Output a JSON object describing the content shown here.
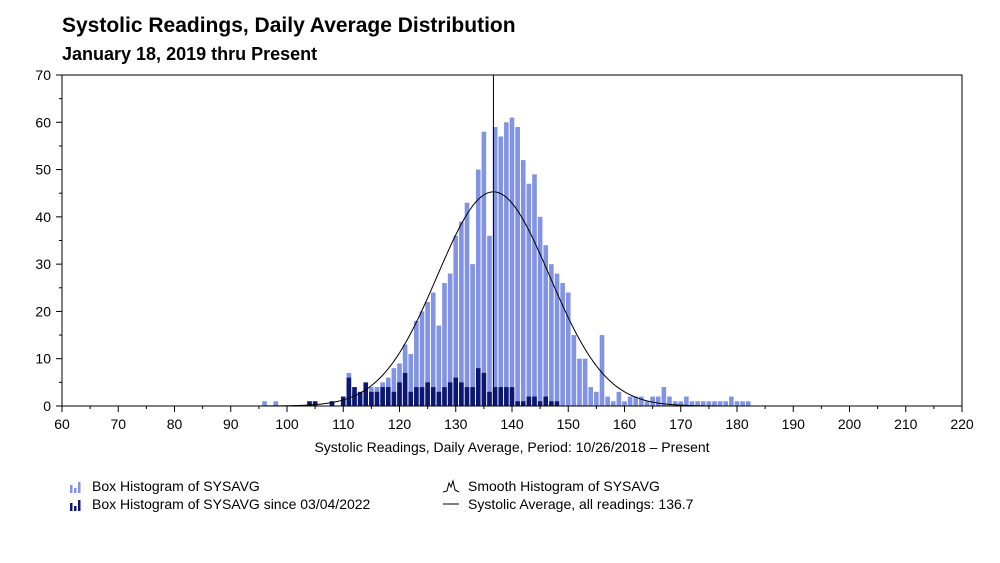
{
  "chart_data": {
    "type": "bar",
    "title": "Systolic Readings, Daily Average Distribution",
    "subtitle": "January 18, 2019 thru Present",
    "xlabel": "Systolic Readings, Daily Average, Period: 10/26/2018 – Present",
    "ylabel": "",
    "xlim": [
      60,
      220
    ],
    "ylim": [
      0,
      70
    ],
    "x_ticks": [
      60,
      70,
      80,
      90,
      100,
      110,
      120,
      130,
      140,
      150,
      160,
      170,
      180,
      190,
      200,
      210,
      220
    ],
    "y_ticks": [
      0,
      10,
      20,
      30,
      40,
      50,
      60,
      70
    ],
    "mean": 136.7,
    "curve_peak": 45.3,
    "curve_sd": 10,
    "series": [
      {
        "name": "Box Histogram of SYSAVG",
        "color": "#8193e2",
        "x": [
          96,
          98,
          104,
          105,
          108,
          110,
          111,
          112,
          113,
          114,
          115,
          116,
          117,
          118,
          119,
          120,
          121,
          122,
          123,
          124,
          125,
          126,
          127,
          128,
          129,
          130,
          131,
          132,
          133,
          134,
          135,
          136,
          137,
          138,
          139,
          140,
          141,
          142,
          143,
          144,
          145,
          146,
          147,
          148,
          149,
          150,
          151,
          152,
          153,
          154,
          155,
          156,
          157,
          158,
          159,
          160,
          161,
          162,
          163,
          164,
          165,
          166,
          167,
          168,
          169,
          170,
          171,
          172,
          173,
          174,
          175,
          176,
          177,
          178,
          179,
          180,
          181,
          182
        ],
        "values": [
          1,
          1,
          1,
          1,
          1,
          1,
          7,
          3,
          2,
          2,
          4,
          4,
          5,
          6,
          8,
          9,
          13,
          11,
          18,
          20,
          22,
          24,
          17,
          26,
          28,
          36,
          39,
          43,
          30,
          50,
          58,
          36,
          59,
          57,
          60,
          61,
          59,
          52,
          47,
          49,
          40,
          34,
          30,
          28,
          26,
          24,
          15,
          10,
          10,
          4,
          3,
          15,
          2,
          1,
          3,
          1,
          2,
          2,
          2,
          1,
          2,
          2,
          4,
          2,
          1,
          1,
          2,
          1,
          1,
          1,
          1,
          1,
          1,
          1,
          2,
          1,
          1,
          1
        ]
      },
      {
        "name": "Box Histogram of SYSAVG since 03/04/2022",
        "color": "#0c1771",
        "x": [
          104,
          105,
          108,
          110,
          111,
          112,
          113,
          114,
          115,
          116,
          117,
          118,
          119,
          120,
          121,
          122,
          123,
          124,
          125,
          126,
          127,
          128,
          129,
          130,
          131,
          132,
          133,
          134,
          135,
          136,
          137,
          138,
          139,
          140,
          141,
          142,
          143,
          144,
          145,
          146,
          147,
          148
        ],
        "values": [
          1,
          1,
          1,
          2,
          6,
          4,
          3,
          5,
          3,
          3,
          4,
          4,
          3,
          5,
          7,
          3,
          4,
          4,
          5,
          4,
          3,
          4,
          5,
          6,
          5,
          4,
          4,
          8,
          7,
          3,
          4,
          4,
          4,
          4,
          1,
          1,
          2,
          2,
          1,
          2,
          1,
          1
        ]
      }
    ],
    "legend": [
      {
        "key": "box",
        "label": "Box Histogram of SYSAVG"
      },
      {
        "key": "box_recent",
        "label": "Box Histogram of SYSAVG since 03/04/2022"
      },
      {
        "key": "smooth",
        "label": "Smooth Histogram of SYSAVG"
      },
      {
        "key": "avg",
        "label": "Systolic Average, all readings: 136.7"
      }
    ]
  }
}
